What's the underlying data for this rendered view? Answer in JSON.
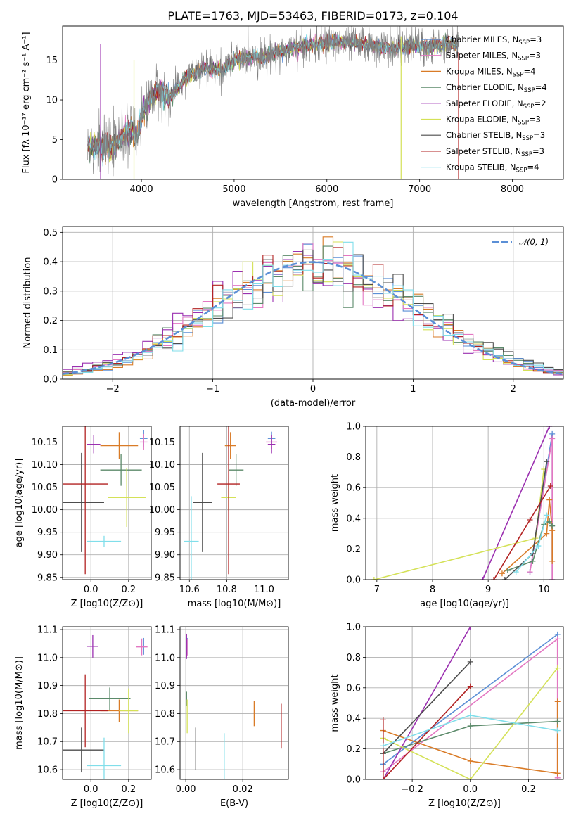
{
  "chart_data": [
    {
      "type": "line",
      "title": "PLATE=1763, MJD=53463, FIBERID=0173, z=0.104",
      "xlabel": "wavelength [Angstrom, rest frame]",
      "ylabel": "Flux [fλ 10⁻¹⁷ erg cm⁻² s⁻¹ A⁻¹]",
      "xlim": [
        3150,
        8550
      ],
      "ylim": [
        0,
        19.3
      ],
      "xticks": [
        4000,
        5000,
        6000,
        7000,
        8000
      ],
      "yticks": [
        0,
        5,
        10,
        15
      ],
      "grid": false,
      "legend_position": "right",
      "observed_color": "#808080",
      "spectrum_anchors": [
        [
          3420,
          4.5
        ],
        [
          3600,
          4.0
        ],
        [
          3700,
          4.2
        ],
        [
          3800,
          5.4
        ],
        [
          3900,
          6.2
        ],
        [
          3950,
          5.2
        ],
        [
          4000,
          8.0
        ],
        [
          4100,
          10.2
        ],
        [
          4200,
          11.2
        ],
        [
          4300,
          10.2
        ],
        [
          4350,
          11.0
        ],
        [
          4500,
          13.0
        ],
        [
          4700,
          14.0
        ],
        [
          4860,
          13.8
        ],
        [
          5000,
          15.0
        ],
        [
          5200,
          15.5
        ],
        [
          5300,
          15.3
        ],
        [
          5500,
          16.2
        ],
        [
          5700,
          16.6
        ],
        [
          5900,
          17.0
        ],
        [
          6100,
          17.3
        ],
        [
          6300,
          17.2
        ],
        [
          6500,
          16.8
        ],
        [
          6700,
          16.5
        ],
        [
          6900,
          16.8
        ],
        [
          7100,
          16.6
        ],
        [
          7300,
          17.2
        ],
        [
          7420,
          17.0
        ]
      ],
      "series": [
        {
          "name": "Chabrier MILES",
          "nssp": "3",
          "color": "#5b8fd6"
        },
        {
          "name": "Salpeter MILES",
          "nssp": "3",
          "color": "#e377c2"
        },
        {
          "name": "Kroupa MILES",
          "nssp": "4",
          "color": "#d97b27"
        },
        {
          "name": "Chabrier ELODIE",
          "nssp": "4",
          "color": "#5b8a6a"
        },
        {
          "name": "Salpeter ELODIE",
          "nssp": "2",
          "color": "#9b30b0"
        },
        {
          "name": "Kroupa ELODIE",
          "nssp": "3",
          "color": "#d4e157"
        },
        {
          "name": "Chabrier STELIB",
          "nssp": "3",
          "color": "#4d4d4d"
        },
        {
          "name": "Salpeter STELIB",
          "nssp": "3",
          "color": "#b22222"
        },
        {
          "name": "Kroupa STELIB",
          "nssp": "4",
          "color": "#80deea"
        }
      ]
    },
    {
      "type": "area",
      "xlabel": "(data-model)/error",
      "ylabel": "Normed distribution",
      "xlim": [
        -2.5,
        2.5
      ],
      "ylim": [
        0,
        0.52
      ],
      "xticks": [
        -2,
        -1,
        0,
        1,
        2
      ],
      "yticks": [
        0.0,
        0.1,
        0.2,
        0.3,
        0.4,
        0.5
      ],
      "grid": true,
      "reference_curve": "𝒩(0, 1)",
      "reference_color": "#5b8fd6",
      "legend_position": "upper right",
      "bin_width": 0.1
    },
    {
      "type": "scatter",
      "xlabel": "Z [log10(Z/Z⊙)]",
      "ylabel": "age  [log10(age/yr)]",
      "xlim": [
        -0.15,
        0.32
      ],
      "ylim": [
        9.845,
        10.185
      ],
      "xticks": [
        0.0,
        0.2
      ],
      "yticks": [
        9.85,
        9.9,
        9.95,
        10.0,
        10.05,
        10.1,
        10.15
      ],
      "grid": true,
      "points": [
        {
          "x": 0.28,
          "y": 10.158,
          "xerr": 0.02,
          "yerr": 0.018,
          "color": "#5b8fd6"
        },
        {
          "x": 0.28,
          "y": 10.15,
          "xerr": 0.02,
          "yerr": 0.018,
          "color": "#e377c2"
        },
        {
          "x": 0.15,
          "y": 10.142,
          "xerr": 0.1,
          "yerr": 0.03,
          "color": "#d97b27"
        },
        {
          "x": 0.16,
          "y": 10.088,
          "xerr": 0.11,
          "yerr": 0.035,
          "color": "#5b8a6a"
        },
        {
          "x": 0.015,
          "y": 10.145,
          "xerr": 0.035,
          "yerr": 0.02,
          "color": "#9b30b0"
        },
        {
          "x": 0.19,
          "y": 10.027,
          "xerr": 0.1,
          "yerr": 0.065,
          "color": "#d4e157"
        },
        {
          "x": -0.05,
          "y": 10.016,
          "xerr": 0.12,
          "yerr": 0.11,
          "color": "#4d4d4d"
        },
        {
          "x": -0.03,
          "y": 10.057,
          "xerr": 0.12,
          "yerr": 0.2,
          "color": "#b22222"
        },
        {
          "x": 0.07,
          "y": 9.93,
          "xerr": 0.09,
          "yerr": 0.012,
          "color": "#80deea"
        }
      ]
    },
    {
      "type": "scatter",
      "xlabel": "mass [log10(M/M⊙)]",
      "xlim": [
        10.55,
        11.13
      ],
      "ylim": [
        9.845,
        10.185
      ],
      "xticks": [
        10.6,
        10.8,
        11.0
      ],
      "yticks": [
        9.85,
        9.9,
        9.95,
        10.0,
        10.05,
        10.1,
        10.15
      ],
      "grid": true,
      "points": [
        {
          "x": 11.04,
          "y": 10.158,
          "xerr": 0.02,
          "yerr": 0.015,
          "color": "#5b8fd6"
        },
        {
          "x": 11.04,
          "y": 10.15,
          "xerr": 0.03,
          "yerr": 0.015,
          "color": "#e377c2"
        },
        {
          "x": 10.82,
          "y": 10.142,
          "xerr": 0.03,
          "yerr": 0.03,
          "color": "#d97b27"
        },
        {
          "x": 10.85,
          "y": 10.088,
          "xerr": 0.04,
          "yerr": 0.035,
          "color": "#5b8a6a"
        },
        {
          "x": 11.04,
          "y": 10.145,
          "xerr": 0.02,
          "yerr": 0.02,
          "color": "#9b30b0"
        },
        {
          "x": 10.81,
          "y": 10.027,
          "xerr": 0.04,
          "yerr": 0.03,
          "color": "#d4e157"
        },
        {
          "x": 10.67,
          "y": 10.016,
          "xerr": 0.05,
          "yerr": 0.11,
          "color": "#4d4d4d"
        },
        {
          "x": 10.81,
          "y": 10.057,
          "xerr": 0.06,
          "yerr": 0.2,
          "color": "#b22222"
        },
        {
          "x": 10.61,
          "y": 9.93,
          "xerr": 0.04,
          "yerr": 0.1,
          "color": "#80deea"
        }
      ]
    },
    {
      "type": "line",
      "xlabel": "age  [log10(age/yr)]",
      "ylabel": "mass weight",
      "xlim": [
        6.8,
        10.35
      ],
      "ylim": [
        0,
        1.0
      ],
      "xticks": [
        7,
        8,
        9,
        10
      ],
      "yticks": [
        0.0,
        0.2,
        0.4,
        0.6,
        0.8,
        1.0
      ],
      "grid": true,
      "series": [
        {
          "color": "#5b8fd6",
          "x": [
            9.75,
            10.15,
            10.15
          ],
          "y": [
            0.05,
            0.95,
            0.0
          ]
        },
        {
          "color": "#e377c2",
          "x": [
            9.75,
            10.15,
            10.15
          ],
          "y": [
            0.05,
            0.92,
            0.0
          ]
        },
        {
          "color": "#d97b27",
          "x": [
            9.25,
            10.05,
            10.1,
            10.15,
            10.15
          ],
          "y": [
            0.04,
            0.3,
            0.52,
            0.32,
            0.12
          ]
        },
        {
          "color": "#5b8a6a",
          "x": [
            9.35,
            9.8,
            10.0,
            10.1,
            10.15
          ],
          "y": [
            0.06,
            0.12,
            0.36,
            0.38,
            0.35
          ]
        },
        {
          "color": "#9b30b0",
          "x": [
            8.9,
            10.1
          ],
          "y": [
            0.0,
            1.0
          ]
        },
        {
          "color": "#d4e157",
          "x": [
            6.95,
            9.85,
            10.0
          ],
          "y": [
            0.0,
            0.27,
            0.72
          ]
        },
        {
          "color": "#4d4d4d",
          "x": [
            9.3,
            9.8,
            10.05
          ],
          "y": [
            0.0,
            0.17,
            0.77
          ]
        },
        {
          "color": "#b22222",
          "x": [
            9.1,
            9.75,
            10.12
          ],
          "y": [
            0.0,
            0.39,
            0.61
          ]
        },
        {
          "color": "#80deea",
          "x": [
            9.5,
            9.9,
            10.05
          ],
          "y": [
            0.05,
            0.22,
            0.42
          ]
        }
      ]
    },
    {
      "type": "scatter",
      "xlabel": "Z [log10(Z/Z⊙)]",
      "ylabel": "mass [log10(M/M⊙)]",
      "xlim": [
        -0.15,
        0.32
      ],
      "ylim": [
        10.565,
        11.11
      ],
      "xticks": [
        0.0,
        0.2
      ],
      "yticks": [
        10.6,
        10.7,
        10.8,
        10.9,
        11.0,
        11.1
      ],
      "grid": true,
      "points": [
        {
          "x": 0.28,
          "y": 11.04,
          "xerr": 0.02,
          "yerr": 0.03,
          "color": "#5b8fd6"
        },
        {
          "x": 0.27,
          "y": 11.038,
          "xerr": 0.03,
          "yerr": 0.03,
          "color": "#e377c2"
        },
        {
          "x": 0.15,
          "y": 10.81,
          "xerr": 0.1,
          "yerr": 0.04,
          "color": "#d97b27"
        },
        {
          "x": 0.1,
          "y": 10.853,
          "xerr": 0.11,
          "yerr": 0.04,
          "color": "#5b8a6a"
        },
        {
          "x": 0.01,
          "y": 11.04,
          "xerr": 0.03,
          "yerr": 0.04,
          "color": "#9b30b0"
        },
        {
          "x": 0.2,
          "y": 10.81,
          "xerr": 0.05,
          "yerr": 0.08,
          "color": "#d4e157"
        },
        {
          "x": -0.05,
          "y": 10.67,
          "xerr": 0.12,
          "yerr": 0.08,
          "color": "#4d4d4d"
        },
        {
          "x": -0.03,
          "y": 10.81,
          "xerr": 0.12,
          "yerr": 0.13,
          "color": "#b22222"
        },
        {
          "x": 0.07,
          "y": 10.614,
          "xerr": 0.09,
          "yerr": 0.1,
          "color": "#80deea"
        }
      ]
    },
    {
      "type": "scatter",
      "xlabel": "E(B-V)",
      "xlim": [
        -0.002,
        0.036
      ],
      "ylim": [
        10.565,
        11.11
      ],
      "xticks": [
        0.0,
        0.02
      ],
      "yticks": [
        10.6,
        10.7,
        10.8,
        10.9,
        11.0,
        11.1
      ],
      "grid": true,
      "points": [
        {
          "x": 0.0005,
          "y": 11.04,
          "xerr": 0,
          "yerr": 0.03,
          "color": "#5b8fd6"
        },
        {
          "x": 0.0005,
          "y": 11.035,
          "xerr": 0,
          "yerr": 0.03,
          "color": "#e377c2"
        },
        {
          "x": 0.024,
          "y": 10.8,
          "xerr": 0,
          "yerr": 0.045,
          "color": "#d97b27"
        },
        {
          "x": 0.0003,
          "y": 10.853,
          "xerr": 0,
          "yerr": 0.025,
          "color": "#5b8a6a"
        },
        {
          "x": 0.0003,
          "y": 11.04,
          "xerr": 0,
          "yerr": 0.045,
          "color": "#9b30b0"
        },
        {
          "x": 0.0005,
          "y": 10.79,
          "xerr": 0,
          "yerr": 0.06,
          "color": "#d4e157"
        },
        {
          "x": 0.0035,
          "y": 10.675,
          "xerr": 0,
          "yerr": 0.075,
          "color": "#4d4d4d"
        },
        {
          "x": 0.0335,
          "y": 10.755,
          "xerr": 0,
          "yerr": 0.08,
          "color": "#b22222"
        },
        {
          "x": 0.0135,
          "y": 10.635,
          "xerr": 0,
          "yerr": 0.095,
          "color": "#80deea"
        }
      ]
    },
    {
      "type": "line",
      "xlabel": "Z [log10(Z/Z⊙)]",
      "ylabel": "mass weight",
      "xlim": [
        -0.36,
        0.32
      ],
      "ylim": [
        0,
        1.0
      ],
      "xticks": [
        -0.2,
        0.0,
        0.2
      ],
      "yticks": [
        0.0,
        0.2,
        0.4,
        0.6,
        0.8,
        1.0
      ],
      "grid": true,
      "series": [
        {
          "color": "#5b8fd6",
          "x": [
            -0.3,
            -0.3,
            0.3
          ],
          "y": [
            0.05,
            0.1,
            0.95
          ]
        },
        {
          "color": "#e377c2",
          "x": [
            -0.3,
            0.3,
            0.3
          ],
          "y": [
            0.05,
            0.92,
            0.01
          ]
        },
        {
          "color": "#d97b27",
          "x": [
            -0.3,
            0.0,
            0.3,
            0.3
          ],
          "y": [
            0.32,
            0.12,
            0.04,
            0.51
          ]
        },
        {
          "color": "#5b8a6a",
          "x": [
            -0.3,
            0.0,
            0.3
          ],
          "y": [
            0.17,
            0.35,
            0.38
          ]
        },
        {
          "color": "#9b30b0",
          "x": [
            -0.3,
            0.0
          ],
          "y": [
            0.0,
            1.0
          ]
        },
        {
          "color": "#d4e157",
          "x": [
            -0.3,
            0.0,
            0.3
          ],
          "y": [
            0.27,
            0.0,
            0.73
          ]
        },
        {
          "color": "#4d4d4d",
          "x": [
            -0.3,
            0.0
          ],
          "y": [
            0.17,
            0.77
          ]
        },
        {
          "color": "#b22222",
          "x": [
            -0.3,
            -0.3,
            0.0
          ],
          "y": [
            0.39,
            0.0,
            0.61
          ]
        },
        {
          "color": "#80deea",
          "x": [
            -0.3,
            0.0,
            0.3
          ],
          "y": [
            0.22,
            0.42,
            0.32
          ]
        }
      ]
    }
  ]
}
